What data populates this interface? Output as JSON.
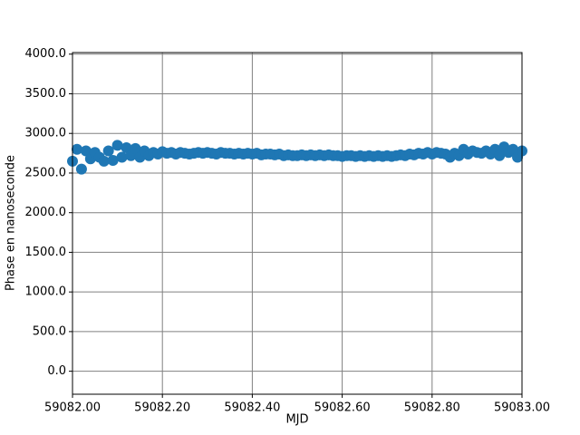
{
  "chart_data": {
    "type": "scatter",
    "xlabel": "MJD",
    "ylabel": "Phase en nanoseconde",
    "x": [
      59082.0,
      59082.01,
      59082.02,
      59082.03,
      59082.04,
      59082.05,
      59082.06,
      59082.07,
      59082.08,
      59082.09,
      59082.1,
      59082.11,
      59082.12,
      59082.13,
      59082.14,
      59082.15,
      59082.16,
      59082.17,
      59082.18,
      59082.19,
      59082.2,
      59082.21,
      59082.22,
      59082.23,
      59082.24,
      59082.25,
      59082.26,
      59082.27,
      59082.28,
      59082.29,
      59082.3,
      59082.31,
      59082.32,
      59082.33,
      59082.34,
      59082.35,
      59082.36,
      59082.37,
      59082.38,
      59082.39,
      59082.4,
      59082.41,
      59082.42,
      59082.43,
      59082.44,
      59082.45,
      59082.46,
      59082.47,
      59082.48,
      59082.49,
      59082.5,
      59082.51,
      59082.52,
      59082.53,
      59082.54,
      59082.55,
      59082.56,
      59082.57,
      59082.58,
      59082.59,
      59082.6,
      59082.61,
      59082.62,
      59082.63,
      59082.64,
      59082.65,
      59082.66,
      59082.67,
      59082.68,
      59082.69,
      59082.7,
      59082.71,
      59082.72,
      59082.73,
      59082.74,
      59082.75,
      59082.76,
      59082.77,
      59082.78,
      59082.79,
      59082.8,
      59082.81,
      59082.82,
      59082.83,
      59082.84,
      59082.85,
      59082.86,
      59082.87,
      59082.88,
      59082.89,
      59082.9,
      59082.91,
      59082.92,
      59082.93,
      59082.94,
      59082.95,
      59082.96,
      59082.97,
      59082.98,
      59082.99,
      59083.0
    ],
    "series": [
      {
        "color": "#1f77b4",
        "values": [
          2650,
          2800,
          2550,
          2780,
          2680,
          2760,
          2700,
          2650,
          2780,
          2660,
          2850,
          2700,
          2820,
          2720,
          2810,
          2700,
          2780,
          2720,
          2760,
          2740,
          2770,
          2750,
          2760,
          2740,
          2760,
          2750,
          2740,
          2750,
          2760,
          2750,
          2760,
          2750,
          2740,
          2760,
          2750,
          2750,
          2740,
          2750,
          2740,
          2750,
          2740,
          2750,
          2730,
          2740,
          2740,
          2730,
          2740,
          2720,
          2730,
          2720,
          2720,
          2730,
          2720,
          2730,
          2720,
          2730,
          2720,
          2730,
          2720,
          2720,
          2710,
          2720,
          2720,
          2710,
          2720,
          2710,
          2720,
          2710,
          2720,
          2710,
          2720,
          2710,
          2720,
          2730,
          2720,
          2740,
          2730,
          2750,
          2740,
          2760,
          2740,
          2760,
          2750,
          2740,
          2700,
          2750,
          2720,
          2800,
          2740,
          2780,
          2760,
          2750,
          2780,
          2740,
          2800,
          2720,
          2830,
          2760,
          2800,
          2700,
          2780
        ]
      }
    ],
    "xlim": [
      59082.0,
      59083.0
    ],
    "xticks": [
      {
        "value": 59082.0,
        "label": "59082.00"
      },
      {
        "value": 59082.2,
        "label": "59082.20"
      },
      {
        "value": 59082.4,
        "label": "59082.40"
      },
      {
        "value": 59082.6,
        "label": "59082.60"
      },
      {
        "value": 59082.8,
        "label": "59082.80"
      },
      {
        "value": 59083.0,
        "label": "59083.00"
      }
    ],
    "ylim": [
      -290,
      4020
    ],
    "yticks": [
      {
        "value": 0,
        "label": "0.0"
      },
      {
        "value": 500,
        "label": "500.0"
      },
      {
        "value": 1000,
        "label": "1000.0"
      },
      {
        "value": 1500,
        "label": "1500.0"
      },
      {
        "value": 2000,
        "label": "2000.0"
      },
      {
        "value": 2500,
        "label": "2500.0"
      },
      {
        "value": 3000,
        "label": "3000.0"
      },
      {
        "value": 3500,
        "label": "3500.0"
      },
      {
        "value": 4000,
        "label": "4000.0"
      }
    ],
    "grid": true
  }
}
